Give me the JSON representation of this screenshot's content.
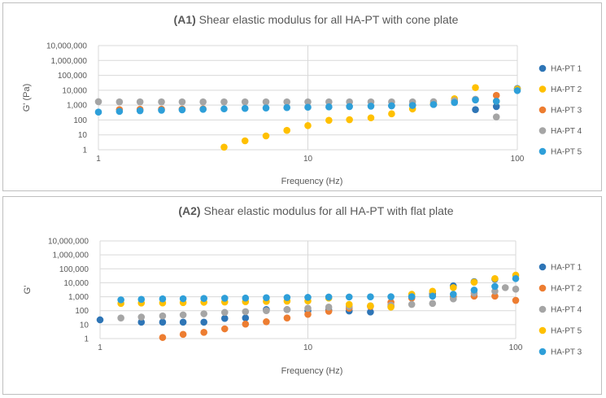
{
  "chart_data": [
    {
      "type": "scatter",
      "title_prefix": "(A1)",
      "title_rest": " Shear elastic modulus for all HA-PT with cone plate",
      "xlabel": "Frequency (Hz)",
      "ylabel": "G' (Pa)",
      "xscale": "log",
      "yscale": "log",
      "xlim": [
        1,
        100
      ],
      "ylim": [
        1,
        10000000
      ],
      "x_ticks": [
        "1",
        "10",
        "100"
      ],
      "y_ticks": [
        "1",
        "10",
        "100",
        "1,000",
        "10,000",
        "100,000",
        "1,000,000",
        "10,000,000"
      ],
      "legend_position": "right",
      "series": [
        {
          "name": "HA-PT 1",
          "color": "#2e75b6",
          "points": [
            [
              100,
              13000
            ],
            [
              79.4,
              800
            ],
            [
              63.1,
              500
            ],
            [
              50.1,
              2000
            ],
            [
              39.8,
              1100
            ],
            [
              31.6,
              1000
            ],
            [
              25.1,
              900
            ]
          ]
        },
        {
          "name": "HA-PT 2",
          "color": "#ffc000",
          "points": [
            [
              3.98,
              1.5
            ],
            [
              5.01,
              4
            ],
            [
              6.31,
              8.5
            ],
            [
              7.94,
              20
            ],
            [
              10,
              42
            ],
            [
              12.6,
              95
            ],
            [
              15.8,
              105
            ],
            [
              20,
              140
            ],
            [
              25.1,
              260
            ],
            [
              31.6,
              550
            ],
            [
              39.8,
              1300
            ],
            [
              50.1,
              2700
            ],
            [
              63.1,
              15000
            ],
            [
              79.4,
              1800
            ],
            [
              100,
              12000
            ]
          ]
        },
        {
          "name": "HA-PT 3",
          "color": "#ed7d31",
          "points": [
            [
              1.26,
              500
            ],
            [
              1.58,
              520
            ],
            [
              2,
              530
            ],
            [
              2.51,
              540
            ],
            [
              3.16,
              560
            ],
            [
              79.4,
              4500
            ]
          ]
        },
        {
          "name": "HA-PT 4",
          "color": "#a5a5a5",
          "points": [
            [
              1,
              1700
            ],
            [
              1.26,
              1650
            ],
            [
              1.58,
              1650
            ],
            [
              2,
              1650
            ],
            [
              2.51,
              1650
            ],
            [
              3.16,
              1650
            ],
            [
              3.98,
              1650
            ],
            [
              5.01,
              1650
            ],
            [
              6.31,
              1650
            ],
            [
              7.94,
              1650
            ],
            [
              10,
              1650
            ],
            [
              12.6,
              1650
            ],
            [
              15.8,
              1650
            ],
            [
              20,
              1650
            ],
            [
              25.1,
              1650
            ],
            [
              31.6,
              1650
            ],
            [
              39.8,
              1700
            ],
            [
              50.1,
              2000
            ],
            [
              63.1,
              2500
            ],
            [
              79.4,
              160
            ]
          ]
        },
        {
          "name": "HA-PT 5",
          "color": "#2e9fd9",
          "points": [
            [
              1,
              340
            ],
            [
              1.26,
              380
            ],
            [
              1.58,
              420
            ],
            [
              2,
              450
            ],
            [
              2.51,
              480
            ],
            [
              3.16,
              520
            ],
            [
              3.98,
              560
            ],
            [
              5.01,
              600
            ],
            [
              6.31,
              640
            ],
            [
              7.94,
              680
            ],
            [
              10,
              720
            ],
            [
              12.6,
              760
            ],
            [
              15.8,
              800
            ],
            [
              20,
              850
            ],
            [
              25.1,
              900
            ],
            [
              31.6,
              950
            ],
            [
              39.8,
              1100
            ],
            [
              50.1,
              1500
            ],
            [
              63.1,
              2200
            ],
            [
              79.4,
              1800
            ],
            [
              100,
              9500
            ]
          ]
        }
      ]
    },
    {
      "type": "scatter",
      "title_prefix": "(A2)",
      "title_rest": " Shear elastic modulus for all HA-PT with flat plate",
      "xlabel": "Frequency (Hz)",
      "ylabel": "G'",
      "xscale": "log",
      "yscale": "log",
      "xlim": [
        1,
        100
      ],
      "ylim": [
        1,
        10000000
      ],
      "x_ticks": [
        "1",
        "10",
        "100"
      ],
      "y_ticks": [
        "1",
        "10",
        "100",
        "1,000",
        "10,000",
        "100,000",
        "1,000,000",
        "10,000,000"
      ],
      "legend_position": "right",
      "series": [
        {
          "name": "HA-PT 1",
          "color": "#2e75b6",
          "points": [
            [
              1,
              22
            ],
            [
              1.58,
              15
            ],
            [
              2,
              15
            ],
            [
              2.51,
              15
            ],
            [
              3.16,
              15
            ],
            [
              3.98,
              28
            ],
            [
              5.01,
              30
            ],
            [
              6.31,
              120
            ],
            [
              7.94,
              120
            ],
            [
              10,
              100
            ],
            [
              12.6,
              110
            ],
            [
              15.8,
              95
            ],
            [
              20,
              80
            ],
            [
              25.1,
              200
            ],
            [
              31.6,
              1000
            ],
            [
              39.8,
              1600
            ],
            [
              50.1,
              6000
            ],
            [
              63.1,
              12000
            ],
            [
              79.4,
              18000
            ]
          ]
        },
        {
          "name": "HA-PT 2",
          "color": "#ed7d31",
          "points": [
            [
              2,
              1.2
            ],
            [
              2.51,
              2
            ],
            [
              3.16,
              2.8
            ],
            [
              3.98,
              5
            ],
            [
              5.01,
              11
            ],
            [
              6.31,
              16
            ],
            [
              7.94,
              30
            ],
            [
              10,
              55
            ],
            [
              12.6,
              90
            ],
            [
              15.8,
              150
            ],
            [
              20,
              200
            ],
            [
              25.1,
              400
            ],
            [
              31.6,
              800
            ],
            [
              39.8,
              1200
            ],
            [
              50.1,
              1000
            ],
            [
              63.1,
              1100
            ],
            [
              79.4,
              1100
            ],
            [
              100,
              550
            ]
          ]
        },
        {
          "name": "HA-PT 4",
          "color": "#a5a5a5",
          "points": [
            [
              1.26,
              30
            ],
            [
              1.58,
              35
            ],
            [
              2,
              42
            ],
            [
              2.51,
              50
            ],
            [
              3.16,
              60
            ],
            [
              3.98,
              75
            ],
            [
              5.01,
              85
            ],
            [
              6.31,
              100
            ],
            [
              7.94,
              120
            ],
            [
              10,
              150
            ],
            [
              12.6,
              180
            ],
            [
              15.8,
              200
            ],
            [
              20,
              220
            ],
            [
              25.1,
              250
            ],
            [
              31.6,
              280
            ],
            [
              39.8,
              330
            ],
            [
              50.1,
              700
            ],
            [
              63.1,
              1800
            ],
            [
              79.4,
              2500
            ],
            [
              89.1,
              4500
            ],
            [
              100,
              3500
            ]
          ]
        },
        {
          "name": "HA-PT 5",
          "color": "#ffc000",
          "points": [
            [
              1.26,
              330
            ],
            [
              1.58,
              350
            ],
            [
              2,
              360
            ],
            [
              2.51,
              380
            ],
            [
              3.16,
              400
            ],
            [
              3.98,
              420
            ],
            [
              5.01,
              440
            ],
            [
              6.31,
              460
            ],
            [
              7.94,
              480
            ],
            [
              10,
              500
            ],
            [
              12.6,
              800
            ],
            [
              15.8,
              280
            ],
            [
              20,
              220
            ],
            [
              25.1,
              180
            ],
            [
              31.6,
              1500
            ],
            [
              39.8,
              2500
            ],
            [
              50.1,
              4500
            ],
            [
              63.1,
              11000
            ],
            [
              79.4,
              20000
            ],
            [
              100,
              35000
            ]
          ]
        },
        {
          "name": "HA-PT 3",
          "color": "#2e9fd9",
          "points": [
            [
              1.26,
              600
            ],
            [
              1.58,
              650
            ],
            [
              2,
              700
            ],
            [
              2.51,
              720
            ],
            [
              3.16,
              750
            ],
            [
              3.98,
              780
            ],
            [
              5.01,
              800
            ],
            [
              6.31,
              850
            ],
            [
              7.94,
              880
            ],
            [
              10,
              900
            ],
            [
              12.6,
              950
            ],
            [
              15.8,
              960
            ],
            [
              20,
              980
            ],
            [
              25.1,
              1000
            ],
            [
              31.6,
              1000
            ],
            [
              39.8,
              1100
            ],
            [
              50.1,
              1500
            ],
            [
              63.1,
              3000
            ],
            [
              79.4,
              5500
            ],
            [
              100,
              20000
            ]
          ]
        }
      ]
    }
  ]
}
